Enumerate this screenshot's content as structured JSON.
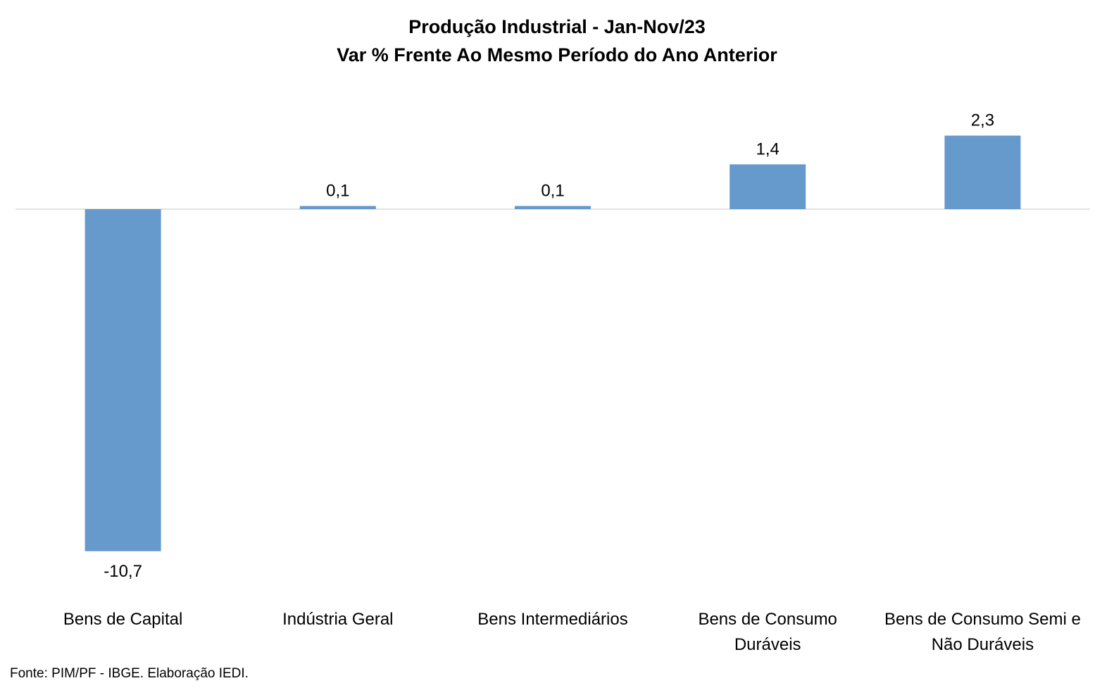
{
  "chart_data": {
    "type": "bar",
    "title": "Produção Industrial - Jan-Nov/23",
    "subtitle": "Var % Frente Ao Mesmo Período do Ano Anterior",
    "categories": [
      "Bens de Capital",
      "Indústria Geral",
      "Bens Intermediários",
      "Bens de Consumo Duráveis",
      "Bens de Consumo Semi e Não Duráveis"
    ],
    "category_lines": [
      [
        "Bens de Capital"
      ],
      [
        "Indústria Geral"
      ],
      [
        "Bens Intermediários"
      ],
      [
        "Bens de Consumo",
        "Duráveis"
      ],
      [
        "Bens de Consumo Semi e",
        "Não Duráveis"
      ]
    ],
    "values": [
      -10.7,
      0.1,
      0.1,
      1.4,
      2.3
    ],
    "data_labels": [
      "-10,7",
      "0,1",
      "0,1",
      "1,4",
      "2,3"
    ],
    "ylim": [
      -10.7,
      2.3
    ],
    "grid": false,
    "legend": "none",
    "bar_color": "#6699CC",
    "axis_color": "#D9D9D9"
  },
  "source": "Fonte: PIM/PF - IBGE. Elaboração IEDI."
}
